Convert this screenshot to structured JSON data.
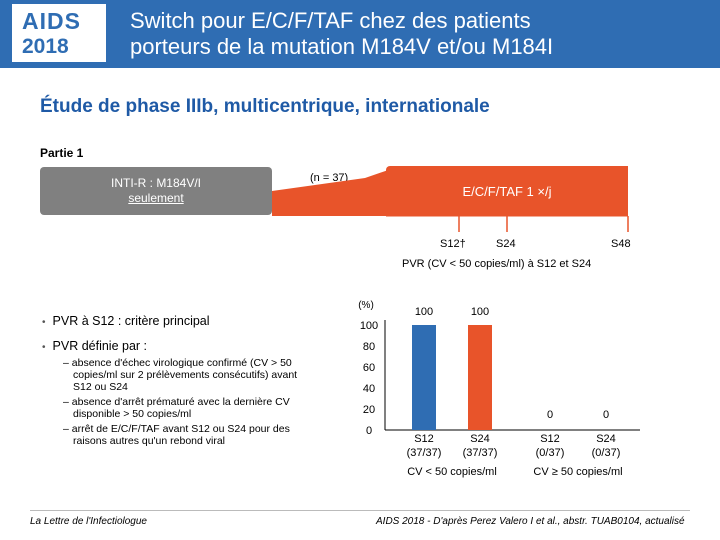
{
  "header": {
    "logo_line1": "AIDS",
    "logo_line2": "2018",
    "title_line1": "Switch pour E/C/F/TAF chez des patients",
    "title_line2": "porteurs de la mutation M184V et/ou M184I"
  },
  "subtitle": "Étude de phase IIIb, multicentrique, internationale",
  "partie": "Partie 1",
  "design": {
    "group_line1": "INTI-R : M184V/I",
    "group_line2": "seulement",
    "n_label": "(n = 37)",
    "treatment": "E/C/F/TAF 1 ×/j",
    "timepoints": [
      "S12†",
      "S24",
      "S48"
    ],
    "caption": "PVR (CV < 50 copies/ml) à S12 et S24"
  },
  "bullets": {
    "primary": "PVR à S12 : critère principal",
    "definition": "PVR définie par :",
    "sub_items": [
      "absence d'échec virologique confirmé (CV > 50 copies/ml sur 2 prélèvements consécutifs) avant S12 ou S24",
      "absence d'arrêt prématuré avec la dernière CV disponible > 50 copies/ml",
      "arrêt de E/C/F/TAF avant S12 ou S24 pour des raisons autres qu'un rebond viral"
    ]
  },
  "colors": {
    "header_blue": "#2f6db3",
    "orange": "#e8542a",
    "bar_blue": "#2f6db3",
    "gray": "#808080"
  },
  "chart_data": {
    "type": "bar",
    "unit_label": "(%)",
    "ylim": [
      0,
      100
    ],
    "yticks": [
      0,
      20,
      40,
      60,
      80,
      100
    ],
    "groups": [
      {
        "label": "CV < 50 copies/ml",
        "bars": [
          {
            "label": "S12",
            "sub": "(37/37)",
            "value": 100,
            "color": "#2f6db3"
          },
          {
            "label": "S24",
            "sub": "(37/37)",
            "value": 100,
            "color": "#e8542a"
          }
        ]
      },
      {
        "label": "CV ≥ 50 copies/ml",
        "bars": [
          {
            "label": "S12",
            "sub": "(0/37)",
            "value": 0,
            "color": "#2f6db3"
          },
          {
            "label": "S24",
            "sub": "(0/37)",
            "value": 0,
            "color": "#e8542a"
          }
        ]
      }
    ]
  },
  "footer": {
    "left": "La Lettre de l'Infectiologue",
    "right": "AIDS 2018 - D'après Perez Valero I et al., abstr. TUAB0104, actualisé"
  }
}
